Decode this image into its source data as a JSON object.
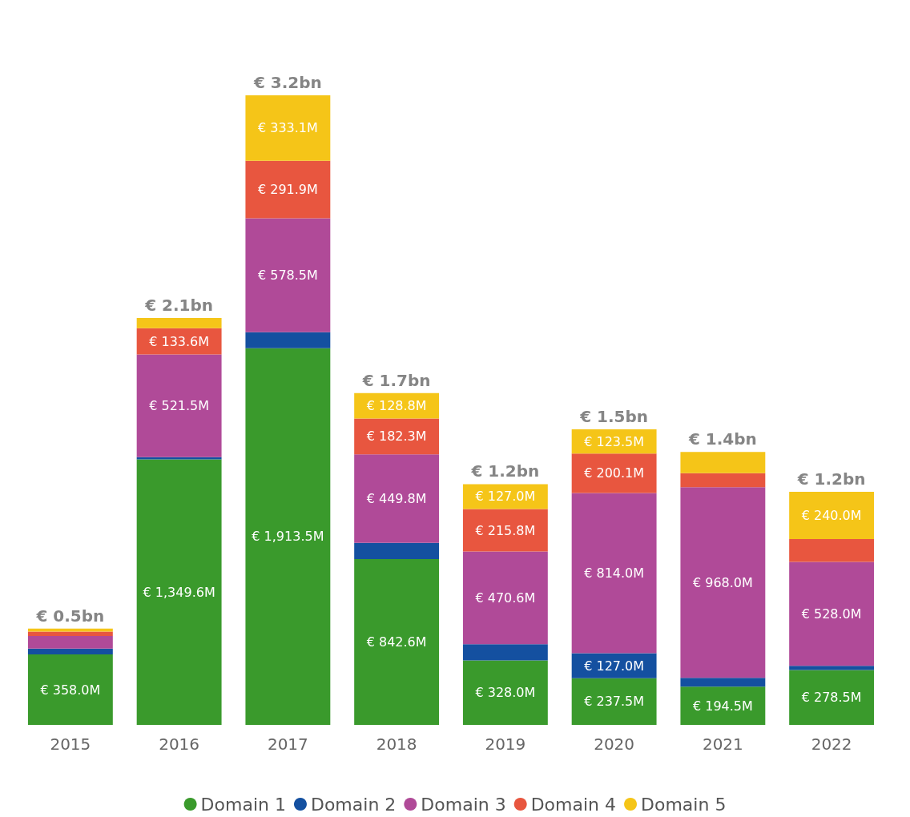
{
  "chart_data": {
    "type": "bar",
    "stacked": true,
    "categories": [
      "2015",
      "2016",
      "2017",
      "2018",
      "2019",
      "2020",
      "2021",
      "2022"
    ],
    "series": [
      {
        "name": "Domain 1",
        "color": "#3a9a2c",
        "values": [
          358.0,
          1349.6,
          1913.5,
          842.6,
          328.0,
          237.5,
          194.5,
          278.5
        ],
        "value_labels": [
          "€ 358.0M",
          "€ 1,349.6M",
          "€ 1,913.5M",
          "€ 842.6M",
          "€ 328.0M",
          "€ 237.5M",
          "€ 194.5M",
          "€ 278.5M"
        ]
      },
      {
        "name": "Domain 2",
        "color": "#1450a0",
        "values": [
          30,
          11,
          82,
          82,
          82,
          127.0,
          45,
          22
        ],
        "value_labels": [
          null,
          null,
          null,
          null,
          null,
          "€ 127.0M",
          null,
          null
        ]
      },
      {
        "name": "Domain 3",
        "color": "#b04a98",
        "values": [
          64,
          521.5,
          578.5,
          449.8,
          470.6,
          814.0,
          968.0,
          528.0
        ],
        "value_labels": [
          null,
          "€ 521.5M",
          "€ 578.5M",
          "€ 449.8M",
          "€ 470.6M",
          "€ 814.0M",
          "€ 968.0M",
          "€ 528.0M"
        ]
      },
      {
        "name": "Domain 4",
        "color": "#e8563f",
        "values": [
          22,
          133.6,
          291.9,
          182.3,
          215.8,
          200.1,
          71,
          116
        ],
        "value_labels": [
          null,
          "€ 133.6M",
          "€ 291.9M",
          "€ 182.3M",
          "€ 215.8M",
          "€ 200.1M",
          null,
          null
        ]
      },
      {
        "name": "Domain 5",
        "color": "#f5c518",
        "values": [
          15,
          52,
          333.1,
          128.8,
          127.0,
          123.5,
          108,
          240.0
        ],
        "value_labels": [
          null,
          null,
          "€ 333.1M",
          "€ 128.8M",
          "€ 127.0M",
          "€ 123.5M",
          null,
          "€ 240.0M"
        ]
      }
    ],
    "totals": [
      "€ 0.5bn",
      "€ 2.1bn",
      "€ 3.2bn",
      "€ 1.7bn",
      "€ 1.2bn",
      "€ 1.5bn",
      "€ 1.4bn",
      "€ 1.2bn"
    ],
    "legend": "bottom",
    "tick_labels": "x"
  }
}
